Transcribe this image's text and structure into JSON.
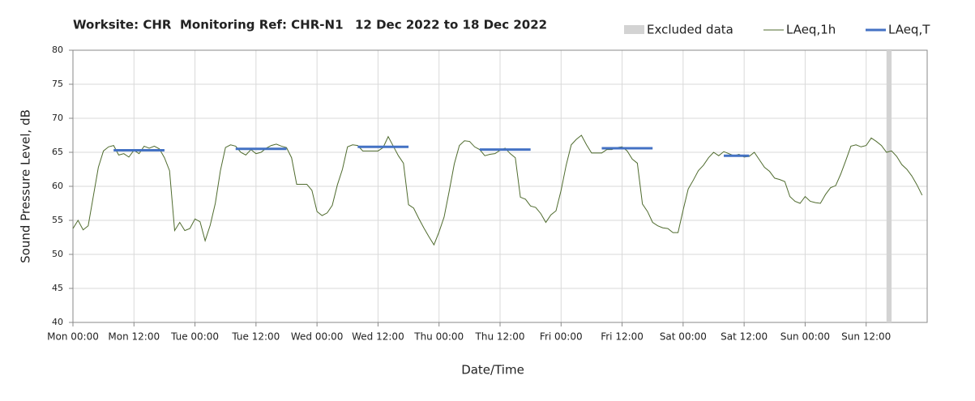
{
  "chart_data": {
    "type": "line",
    "title_parts": [
      "Worksite: CHR",
      "Monitoring Ref: CHR-N1",
      "12 Dec 2022 to 18 Dec 2022"
    ],
    "x_label": "Date/Time",
    "y_label": "Sound Pressure Level, dB",
    "xlim": [
      0,
      168
    ],
    "ylim": [
      40,
      80
    ],
    "yticks": [
      40,
      45,
      50,
      55,
      60,
      65,
      70,
      75,
      80
    ],
    "xticks": [
      {
        "value": 0,
        "label": "Mon 00:00"
      },
      {
        "value": 12,
        "label": "Mon 12:00"
      },
      {
        "value": 24,
        "label": "Tue 00:00"
      },
      {
        "value": 36,
        "label": "Tue 12:00"
      },
      {
        "value": 48,
        "label": "Wed 00:00"
      },
      {
        "value": 60,
        "label": "Wed 12:00"
      },
      {
        "value": 72,
        "label": "Thu 00:00"
      },
      {
        "value": 84,
        "label": "Thu 12:00"
      },
      {
        "value": 96,
        "label": "Fri 00:00"
      },
      {
        "value": 108,
        "label": "Fri 12:00"
      },
      {
        "value": 120,
        "label": "Sat 00:00"
      },
      {
        "value": 132,
        "label": "Sat 12:00"
      },
      {
        "value": 144,
        "label": "Sun 00:00"
      },
      {
        "value": 156,
        "label": "Sun 12:00"
      }
    ],
    "grid": true,
    "excluded": {
      "name": "Excluded data",
      "color": "#d3d3d3",
      "x": [
        160,
        161
      ]
    },
    "x": [
      0,
      1,
      2,
      3,
      4,
      5,
      6,
      7,
      8,
      9,
      10,
      11,
      12,
      13,
      14,
      15,
      16,
      17,
      18,
      19,
      20,
      21,
      22,
      23,
      24,
      25,
      26,
      27,
      28,
      29,
      30,
      31,
      32,
      33,
      34,
      35,
      36,
      37,
      38,
      39,
      40,
      41,
      42,
      43,
      44,
      45,
      46,
      47,
      48,
      49,
      50,
      51,
      52,
      53,
      54,
      55,
      56,
      57,
      58,
      59,
      60,
      61,
      62,
      63,
      64,
      65,
      66,
      67,
      68,
      69,
      70,
      71,
      72,
      73,
      74,
      75,
      76,
      77,
      78,
      79,
      80,
      81,
      82,
      83,
      84,
      85,
      86,
      87,
      88,
      89,
      90,
      91,
      92,
      93,
      94,
      95,
      96,
      97,
      98,
      99,
      100,
      101,
      102,
      103,
      104,
      105,
      106,
      107,
      108,
      109,
      110,
      111,
      112,
      113,
      114,
      115,
      116,
      117,
      118,
      119,
      120,
      121,
      122,
      123,
      124,
      125,
      126,
      127,
      128,
      129,
      130,
      131,
      132,
      133,
      134,
      135,
      136,
      137,
      138,
      139,
      140,
      141,
      142,
      143,
      144,
      145,
      146,
      147,
      148,
      149,
      150,
      151,
      152,
      153,
      154,
      155,
      156,
      157,
      158,
      159,
      160,
      161,
      162,
      163,
      164,
      165,
      166,
      167
    ],
    "series": [
      {
        "name": "LAeq,1h",
        "color": "#4f6b2e",
        "values": [
          53.8,
          55,
          53.6,
          54.2,
          58.5,
          62.8,
          65.2,
          65.8,
          66,
          64.6,
          64.8,
          64.3,
          65.3,
          64.8,
          65.9,
          65.6,
          65.9,
          65.5,
          64.2,
          62.3,
          53.5,
          54.7,
          53.5,
          53.8,
          55.2,
          54.8,
          52,
          54.3,
          57.5,
          62.3,
          65.7,
          66.1,
          65.9,
          65,
          64.6,
          65.4,
          64.8,
          65,
          65.6,
          66,
          66.2,
          65.9,
          65.7,
          64.2,
          60.3,
          60.3,
          60.3,
          59.4,
          56.3,
          55.7,
          56.1,
          57.2,
          60.2,
          62.5,
          65.8,
          66.1,
          66,
          65.2,
          65.2,
          65.2,
          65.2,
          65.7,
          67.3,
          65.9,
          64.5,
          63.4,
          57.3,
          56.8,
          55.3,
          53.9,
          52.6,
          51.4,
          53.3,
          55.5,
          59.3,
          63.3,
          66,
          66.7,
          66.6,
          65.8,
          65.4,
          64.5,
          64.7,
          64.8,
          65.3,
          65.6,
          64.8,
          64.2,
          58.4,
          58.1,
          57.1,
          56.9,
          56,
          54.7,
          55.8,
          56.4,
          59.4,
          63.1,
          66.1,
          66.9,
          67.5,
          66.1,
          64.9,
          64.9,
          64.9,
          65.4,
          65.4,
          65.7,
          65.8,
          65.2,
          64,
          63.4,
          57.4,
          56.3,
          54.7,
          54.2,
          53.9,
          53.8,
          53.2,
          53.2,
          56.5,
          59.6,
          60.9,
          62.3,
          63.1,
          64.2,
          65,
          64.5,
          65.1,
          64.8,
          64.5,
          64.7,
          64.3,
          64.4,
          65,
          63.9,
          62.8,
          62.2,
          61.2,
          61,
          60.7,
          58.5,
          57.8,
          57.5,
          58.5,
          57.8,
          57.6,
          57.5,
          58.8,
          59.8,
          60.1,
          61.8,
          63.8,
          65.9,
          66.1,
          65.8,
          66,
          67.1,
          66.6,
          66,
          65,
          65.2,
          64.4,
          63.2,
          62.5,
          61.5,
          60.2,
          58.7
        ]
      },
      {
        "name": "LAeq,T",
        "color": "#4472c4",
        "segments": [
          {
            "x": [
              8,
              18
            ],
            "value": 65.3
          },
          {
            "x": [
              32,
              42
            ],
            "value": 65.5
          },
          {
            "x": [
              56,
              66
            ],
            "value": 65.8
          },
          {
            "x": [
              80,
              90
            ],
            "value": 65.4
          },
          {
            "x": [
              104,
              114
            ],
            "value": 65.6
          },
          {
            "x": [
              128,
              133
            ],
            "value": 64.5
          }
        ]
      }
    ]
  }
}
